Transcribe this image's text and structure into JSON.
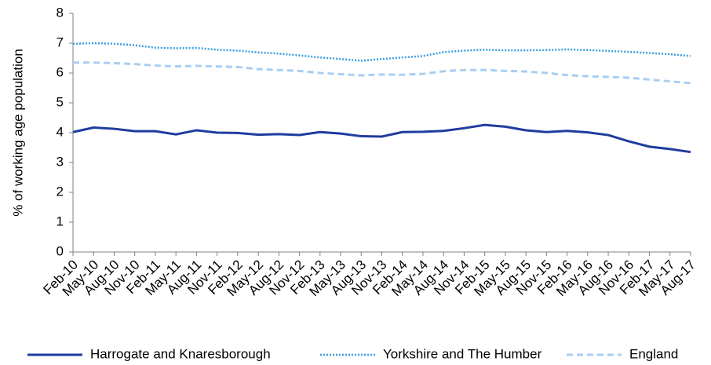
{
  "chart_data": {
    "type": "line",
    "y_label": "% of working age population",
    "categories": [
      "Feb-10",
      "May-10",
      "Aug-10",
      "Nov-10",
      "Feb-11",
      "May-11",
      "Aug-11",
      "Nov-11",
      "Feb-12",
      "May-12",
      "Aug-12",
      "Nov-12",
      "Feb-13",
      "May-13",
      "Aug-13",
      "Nov-13",
      "Feb-14",
      "May-14",
      "Aug-14",
      "Nov-14",
      "Feb-15",
      "May-15",
      "Aug-15",
      "Nov-15",
      "Feb-16",
      "May-16",
      "Aug-16",
      "Nov-16",
      "Feb-17",
      "May-17",
      "Aug-17"
    ],
    "series": [
      {
        "name": "Harrogate and Knaresborough",
        "color": "#1f3c9e",
        "style": "solid",
        "values": [
          4.02,
          4.17,
          4.13,
          4.05,
          4.05,
          3.94,
          4.08,
          4.0,
          3.99,
          3.93,
          3.95,
          3.92,
          4.02,
          3.97,
          3.88,
          3.87,
          4.02,
          4.03,
          4.06,
          4.15,
          4.26,
          4.2,
          4.08,
          4.02,
          4.06,
          4.01,
          3.92,
          3.71,
          3.53,
          3.45,
          3.35
        ]
      },
      {
        "name": "Yorkshire and The Humber",
        "color": "#3a9de0",
        "style": "dotted",
        "values": [
          6.98,
          7.0,
          6.98,
          6.93,
          6.85,
          6.83,
          6.84,
          6.78,
          6.75,
          6.69,
          6.65,
          6.59,
          6.52,
          6.47,
          6.41,
          6.47,
          6.52,
          6.57,
          6.7,
          6.75,
          6.78,
          6.76,
          6.76,
          6.77,
          6.79,
          6.77,
          6.74,
          6.71,
          6.67,
          6.63,
          6.57
        ]
      },
      {
        "name": "England",
        "color": "#a8cef2",
        "style": "dashed",
        "values": [
          6.35,
          6.35,
          6.33,
          6.3,
          6.25,
          6.22,
          6.24,
          6.22,
          6.2,
          6.13,
          6.1,
          6.07,
          6.0,
          5.96,
          5.92,
          5.95,
          5.94,
          5.97,
          6.06,
          6.1,
          6.1,
          6.07,
          6.05,
          6.0,
          5.93,
          5.89,
          5.87,
          5.84,
          5.78,
          5.72,
          5.66
        ]
      }
    ],
    "ylim": [
      0,
      8
    ],
    "yticks": [
      0,
      1,
      2,
      3,
      4,
      5,
      6,
      7,
      8
    ],
    "grid": false,
    "legend": "bottom"
  }
}
